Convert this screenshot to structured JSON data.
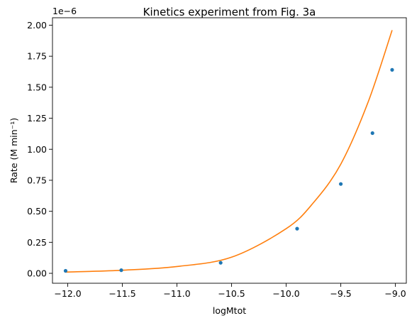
{
  "chart_data": {
    "type": "scatter",
    "title": "Kinetics experiment from Fig. 3a",
    "xlabel": "logMtot",
    "ylabel": "Rate (M min⁻¹)",
    "y_offset_label": "1e−6",
    "xlim": [
      -12.14,
      -8.9
    ],
    "ylim": [
      -0.08,
      2.06
    ],
    "x_ticks": [
      -12.0,
      -11.5,
      -11.0,
      -10.5,
      -10.0,
      -9.5,
      -9.0
    ],
    "x_tick_labels": [
      "−12.0",
      "−11.5",
      "−11.0",
      "−10.5",
      "−10.0",
      "−9.5",
      "−9.0"
    ],
    "y_ticks": [
      0,
      0.25,
      0.5,
      0.75,
      1.0,
      1.25,
      1.5,
      1.75,
      2.0
    ],
    "y_tick_labels": [
      "0.00",
      "0.25",
      "0.50",
      "0.75",
      "1.00",
      "1.25",
      "1.50",
      "1.75",
      "2.00"
    ],
    "grid": false,
    "legend": "none",
    "series": [
      {
        "kind": "points",
        "color": "#1f77b4",
        "x": [
          -12.02,
          -11.51,
          -10.6,
          -9.9,
          -9.5,
          -9.21,
          -9.03
        ],
        "y": [
          0.02,
          0.025,
          0.085,
          0.36,
          0.72,
          1.13,
          1.64
        ]
      },
      {
        "kind": "line",
        "color": "#ff7f0e",
        "x": [
          -12.02,
          -11.5,
          -11.0,
          -10.5,
          -10.0,
          -9.75,
          -9.5,
          -9.25,
          -9.03
        ],
        "y": [
          0.01,
          0.025,
          0.055,
          0.13,
          0.36,
          0.57,
          0.88,
          1.38,
          1.96
        ]
      }
    ]
  }
}
